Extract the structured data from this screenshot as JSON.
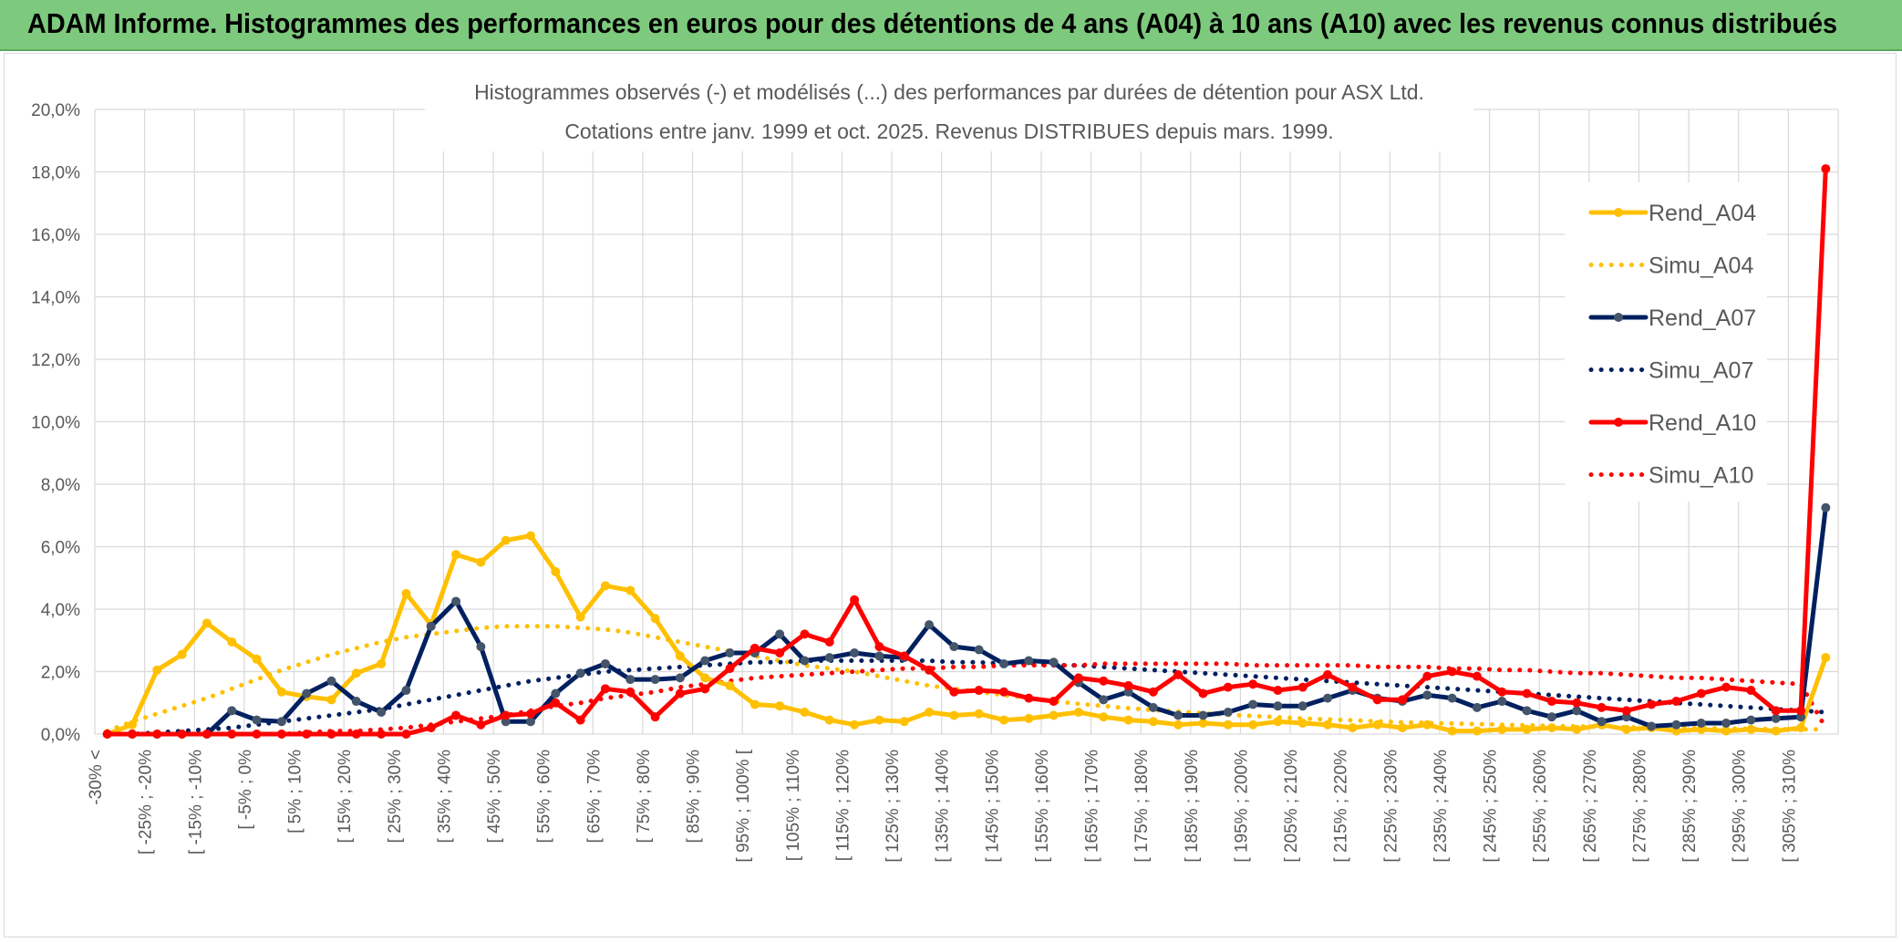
{
  "header": {
    "title": "ADAM Informe. Histogrammes des performances en euros pour des détentions de 4 ans (A04) à 10 ans (A10) avec les revenus connus distribués"
  },
  "colors": {
    "banner": "#7dc97d",
    "rend_a04": "#ffc000",
    "rend_a07": "#002060",
    "rend_a07_marker": "#44546a",
    "rend_a10": "#ff0000",
    "grid": "#d9d9d9"
  },
  "chart_data": {
    "type": "line",
    "title_line1": "Histogrammes observés (-) et modélisés (...) des performances par durées de détention pour ASX Ltd.",
    "title_line2": "Cotations entre janv. 1999 et oct. 2025. Revenus DISTRIBUES depuis mars. 1999.",
    "xlabel": "",
    "ylabel": "",
    "ylim": [
      0,
      20
    ],
    "yticks": [
      "0,0%",
      "2,0%",
      "4,0%",
      "6,0%",
      "8,0%",
      "10,0%",
      "12,0%",
      "14,0%",
      "16,0%",
      "18,0%",
      "20,0%"
    ],
    "grid": true,
    "legend_position": "right",
    "category_labels": [
      "-30% <",
      "[ -25% ; -20%",
      "[ -15% ; -10%",
      "[ -5% ; 0%",
      "[ 5% ; 10%",
      "[ 15% ; 20%",
      "[ 25% ; 30%",
      "[ 35% ; 40%",
      "[ 45% ; 50%",
      "[ 55% ; 60%",
      "[ 65% ; 70%",
      "[ 75% ; 80%",
      "[ 85% ; 90%",
      "[ 95% ; 100% [",
      "[ 105% ; 110%",
      "[ 115% ; 120%",
      "[ 125% ; 130%",
      "[ 135% ; 140%",
      "[ 145% ; 150%",
      "[ 155% ; 160%",
      "[ 165% ; 170%",
      "[ 175% ; 180%",
      "[ 185% ; 190%",
      "[ 195% ; 200%",
      "[ 205% ; 210%",
      "[ 215% ; 220%",
      "[ 225% ; 230%",
      "[ 235% ; 240%",
      "[ 245% ; 250%",
      "[ 255% ; 260%",
      "[ 265% ; 270%",
      "[ 275% ; 280%",
      "[ 285% ; 290%",
      "[ 295% ; 300%",
      "[ 305% ; 310%"
    ],
    "num_points": 70,
    "series": [
      {
        "name": "Rend_A04",
        "style": "solid",
        "values": [
          0.0,
          0.3,
          2.05,
          2.55,
          3.55,
          2.95,
          2.4,
          1.35,
          1.2,
          1.1,
          1.95,
          2.25,
          4.5,
          3.5,
          5.75,
          5.5,
          6.2,
          6.35,
          5.2,
          3.75,
          4.75,
          4.6,
          3.7,
          2.5,
          1.8,
          1.55,
          0.95,
          0.9,
          0.7,
          0.45,
          0.3,
          0.45,
          0.4,
          0.7,
          0.6,
          0.65,
          0.45,
          0.5,
          0.6,
          0.7,
          0.55,
          0.45,
          0.4,
          0.3,
          0.35,
          0.3,
          0.3,
          0.4,
          0.35,
          0.3,
          0.2,
          0.3,
          0.2,
          0.3,
          0.1,
          0.1,
          0.15,
          0.15,
          0.2,
          0.15,
          0.3,
          0.15,
          0.2,
          0.1,
          0.15,
          0.1,
          0.15,
          0.1,
          0.2,
          2.45
        ]
      },
      {
        "name": "Simu_A04",
        "style": "dotted",
        "values": [
          0.1,
          0.4,
          0.65,
          0.9,
          1.15,
          1.45,
          1.75,
          2.05,
          2.3,
          2.55,
          2.75,
          2.95,
          3.1,
          3.2,
          3.3,
          3.4,
          3.45,
          3.45,
          3.45,
          3.4,
          3.35,
          3.25,
          3.1,
          2.95,
          2.8,
          2.65,
          2.5,
          2.35,
          2.2,
          2.1,
          2.0,
          1.85,
          1.7,
          1.55,
          1.45,
          1.35,
          1.25,
          1.15,
          1.05,
          0.97,
          0.9,
          0.83,
          0.77,
          0.72,
          0.67,
          0.62,
          0.58,
          0.54,
          0.5,
          0.47,
          0.44,
          0.41,
          0.38,
          0.36,
          0.34,
          0.32,
          0.3,
          0.28,
          0.26,
          0.25,
          0.23,
          0.22,
          0.21,
          0.2,
          0.19,
          0.18,
          0.17,
          0.16,
          0.15,
          0.15
        ]
      },
      {
        "name": "Rend_A07",
        "style": "solid",
        "values": [
          0.0,
          0.0,
          0.0,
          0.0,
          0.0,
          0.75,
          0.45,
          0.4,
          1.3,
          1.7,
          1.05,
          0.7,
          1.4,
          3.45,
          4.25,
          2.8,
          0.4,
          0.4,
          1.3,
          1.95,
          2.25,
          1.75,
          1.75,
          1.8,
          2.35,
          2.6,
          2.6,
          3.2,
          2.35,
          2.45,
          2.6,
          2.5,
          2.45,
          3.5,
          2.8,
          2.7,
          2.25,
          2.35,
          2.3,
          1.65,
          1.1,
          1.35,
          0.85,
          0.6,
          0.6,
          0.7,
          0.95,
          0.9,
          0.9,
          1.15,
          1.4,
          1.15,
          1.05,
          1.25,
          1.15,
          0.85,
          1.05,
          0.75,
          0.55,
          0.75,
          0.4,
          0.55,
          0.25,
          0.3,
          0.35,
          0.35,
          0.45,
          0.5,
          0.55,
          7.25
        ]
      },
      {
        "name": "Simu_A07",
        "style": "dotted",
        "values": [
          0.0,
          0.0,
          0.05,
          0.1,
          0.15,
          0.2,
          0.3,
          0.4,
          0.5,
          0.6,
          0.7,
          0.8,
          0.95,
          1.1,
          1.25,
          1.4,
          1.55,
          1.7,
          1.8,
          1.9,
          2.0,
          2.05,
          2.1,
          2.15,
          2.2,
          2.25,
          2.3,
          2.3,
          2.35,
          2.35,
          2.35,
          2.35,
          2.35,
          2.35,
          2.3,
          2.3,
          2.25,
          2.25,
          2.2,
          2.2,
          2.15,
          2.1,
          2.05,
          2.0,
          1.95,
          1.9,
          1.85,
          1.8,
          1.75,
          1.7,
          1.65,
          1.6,
          1.55,
          1.5,
          1.45,
          1.4,
          1.35,
          1.3,
          1.25,
          1.2,
          1.15,
          1.1,
          1.05,
          1.0,
          0.95,
          0.9,
          0.85,
          0.8,
          0.75,
          0.7
        ]
      },
      {
        "name": "Rend_A10",
        "style": "solid",
        "values": [
          0.0,
          0.0,
          0.0,
          0.0,
          0.0,
          0.0,
          0.0,
          0.0,
          0.0,
          0.0,
          0.0,
          0.0,
          0.0,
          0.2,
          0.6,
          0.3,
          0.6,
          0.65,
          1.0,
          0.45,
          1.45,
          1.35,
          0.55,
          1.3,
          1.45,
          2.1,
          2.75,
          2.6,
          3.2,
          2.95,
          4.3,
          2.8,
          2.5,
          2.05,
          1.35,
          1.4,
          1.35,
          1.15,
          1.05,
          1.8,
          1.7,
          1.55,
          1.35,
          1.9,
          1.3,
          1.5,
          1.6,
          1.4,
          1.5,
          1.9,
          1.5,
          1.1,
          1.1,
          1.85,
          2.0,
          1.85,
          1.35,
          1.3,
          1.05,
          1.0,
          0.85,
          0.75,
          0.95,
          1.05,
          1.3,
          1.5,
          1.4,
          0.75,
          0.75,
          18.1
        ]
      },
      {
        "name": "Simu_A10",
        "style": "dotted",
        "values": [
          0.0,
          0.0,
          0.0,
          0.0,
          0.0,
          0.0,
          0.0,
          0.0,
          0.05,
          0.1,
          0.1,
          0.15,
          0.2,
          0.3,
          0.4,
          0.5,
          0.6,
          0.75,
          0.9,
          1.0,
          1.15,
          1.25,
          1.35,
          1.5,
          1.6,
          1.7,
          1.8,
          1.85,
          1.9,
          1.95,
          2.0,
          2.05,
          2.1,
          2.1,
          2.15,
          2.15,
          2.2,
          2.2,
          2.2,
          2.2,
          2.25,
          2.25,
          2.25,
          2.25,
          2.25,
          2.25,
          2.2,
          2.2,
          2.2,
          2.2,
          2.2,
          2.15,
          2.15,
          2.15,
          2.1,
          2.1,
          2.05,
          2.05,
          2.0,
          1.95,
          1.95,
          1.9,
          1.85,
          1.8,
          1.8,
          1.75,
          1.7,
          1.65,
          1.6,
          0.2
        ]
      }
    ]
  }
}
